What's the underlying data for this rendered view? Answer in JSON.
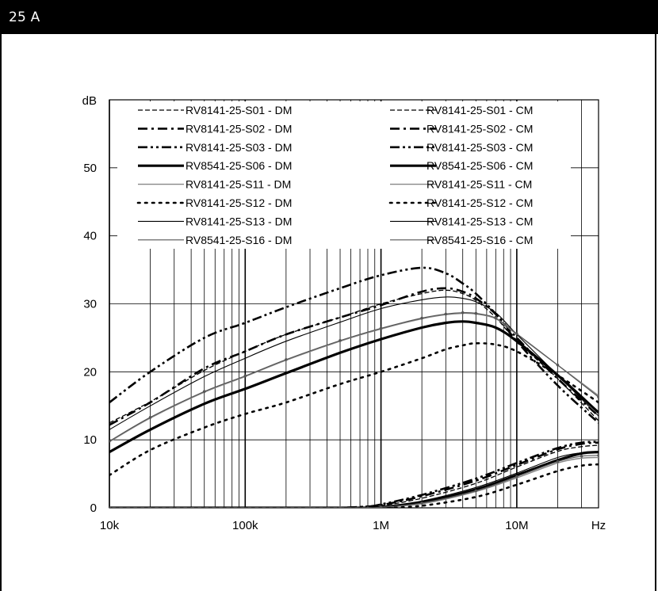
{
  "header": {
    "title": "25 A"
  },
  "chart_data": {
    "type": "line",
    "title": "",
    "xlabel": "Hz",
    "ylabel": "dB",
    "x_scale": "log",
    "xlim": [
      10000,
      40000000
    ],
    "ylim": [
      0,
      60
    ],
    "x_ticks": [
      10000,
      100000,
      1000000,
      10000000
    ],
    "x_tick_labels": [
      "10k",
      "100k",
      "1M",
      "10M"
    ],
    "y_ticks": [
      0,
      10,
      20,
      30,
      40,
      50
    ],
    "y_tick_labels": [
      "0",
      "10",
      "20",
      "30",
      "40",
      "50"
    ],
    "grid": true,
    "legend_placement": "top",
    "series": [
      {
        "name": "RV8141-25-S01 - DM",
        "color": "#000000",
        "style": "dash-fine",
        "x": [
          10000,
          20000,
          50000,
          100000,
          200000,
          500000,
          1000000,
          2000000,
          3000000,
          4000000,
          5000000,
          7000000,
          10000000,
          20000000,
          40000000
        ],
        "y": [
          12.5,
          15.6,
          20.2,
          23,
          25.5,
          28,
          30,
          31.5,
          32,
          31.5,
          30.5,
          28,
          24.5,
          19,
          12.8
        ]
      },
      {
        "name": "RV8141-25-S02 - DM",
        "color": "#000000",
        "style": "dash-dot",
        "x": [
          10000,
          20000,
          50000,
          100000,
          200000,
          500000,
          1000000,
          2000000,
          3000000,
          4000000,
          5000000,
          7000000,
          10000000,
          20000000,
          40000000
        ],
        "y": [
          12.2,
          15.5,
          20.5,
          23,
          25.5,
          28,
          29.8,
          31.8,
          32.3,
          31.8,
          30.8,
          28.5,
          25,
          19,
          13.5
        ]
      },
      {
        "name": "RV8141-25-S03 - DM",
        "color": "#000000",
        "style": "dash-dot-dot",
        "x": [
          10000,
          20000,
          50000,
          100000,
          200000,
          500000,
          1000000,
          2000000,
          3000000,
          4000000,
          5000000,
          7000000,
          10000000,
          20000000,
          40000000
        ],
        "y": [
          15.5,
          20,
          25,
          27.2,
          29.5,
          32.3,
          34.2,
          35.3,
          34.5,
          33,
          31.5,
          28.5,
          24.5,
          18,
          12.5
        ]
      },
      {
        "name": "RV8541-25-S06 - DM",
        "color": "#000000",
        "style": "thick",
        "x": [
          10000,
          20000,
          50000,
          100000,
          200000,
          500000,
          1000000,
          2000000,
          3000000,
          4000000,
          5000000,
          7000000,
          10000000,
          20000000,
          40000000
        ],
        "y": [
          8.2,
          11.5,
          15.3,
          17.5,
          19.8,
          22.8,
          24.8,
          26.5,
          27.2,
          27.4,
          27.2,
          26.5,
          24.5,
          19.5,
          14
        ]
      },
      {
        "name": "RV8141-25-S11 - DM",
        "color": "#888888",
        "style": "solid-gray",
        "x": [
          10000,
          20000,
          50000,
          100000,
          200000,
          500000,
          1000000,
          2000000,
          3000000,
          4000000,
          5000000,
          7000000,
          10000000,
          20000000,
          40000000
        ],
        "y": [
          9.7,
          13.2,
          17,
          19.3,
          21.7,
          24.5,
          26.3,
          27.8,
          28.4,
          28.6,
          28.5,
          27.8,
          25.5,
          21,
          16.5
        ]
      },
      {
        "name": "RV8141-25-S12 - DM",
        "color": "#000000",
        "style": "dotted",
        "x": [
          10000,
          20000,
          50000,
          100000,
          200000,
          500000,
          1000000,
          2000000,
          3000000,
          4000000,
          5000000,
          7000000,
          10000000,
          20000000,
          40000000
        ],
        "y": [
          4.8,
          8.5,
          11.8,
          13.8,
          15.5,
          18.2,
          20,
          22,
          23.3,
          23.9,
          24.2,
          24,
          23,
          19.5,
          15.5
        ]
      },
      {
        "name": "RV8141-25-S13 - DM",
        "color": "#000000",
        "style": "thin",
        "x": [
          10000,
          20000,
          50000,
          100000,
          200000,
          500000,
          1000000,
          2000000,
          3000000,
          4000000,
          5000000,
          7000000,
          10000000,
          20000000,
          40000000
        ],
        "y": [
          11.5,
          15,
          19.3,
          22,
          24.5,
          27.3,
          29.3,
          30.6,
          31,
          30.8,
          30.3,
          28.7,
          25.5,
          19.5,
          13.5
        ]
      },
      {
        "name": "RV8541-25-S16 - DM",
        "color": "#555555",
        "style": "gray-dots",
        "x": [
          10000,
          20000,
          50000,
          100000,
          200000,
          500000,
          1000000,
          2000000,
          3000000,
          4000000,
          5000000,
          7000000,
          10000000,
          20000000,
          40000000
        ],
        "y": [
          9.8,
          13.3,
          17.1,
          19.4,
          21.8,
          24.6,
          26.4,
          27.9,
          28.5,
          28.7,
          28.6,
          27.9,
          25.6,
          21,
          16.3
        ]
      },
      {
        "name": "RV8141-25-S01 - CM",
        "color": "#000000",
        "style": "dash-fine",
        "x": [
          10000,
          300000,
          500000,
          800000,
          1000000,
          2000000,
          5000000,
          10000000,
          20000000,
          30000000,
          40000000
        ],
        "y": [
          0,
          0,
          0,
          0.1,
          0.3,
          1.4,
          3.6,
          6.0,
          8.3,
          9.0,
          9.2
        ]
      },
      {
        "name": "RV8141-25-S02 - CM",
        "color": "#000000",
        "style": "dash-dot",
        "x": [
          10000,
          300000,
          500000,
          800000,
          1000000,
          2000000,
          5000000,
          10000000,
          20000000,
          30000000,
          40000000
        ],
        "y": [
          0,
          0,
          0,
          0.2,
          0.4,
          1.7,
          4.0,
          6.3,
          8.6,
          9.4,
          9.6
        ]
      },
      {
        "name": "RV8141-25-S03 - CM",
        "color": "#000000",
        "style": "dash-dot-dot",
        "x": [
          10000,
          300000,
          500000,
          800000,
          1000000,
          2000000,
          5000000,
          10000000,
          20000000,
          30000000,
          40000000
        ],
        "y": [
          0,
          0,
          0,
          0.2,
          0.5,
          1.9,
          4.3,
          6.6,
          8.8,
          9.6,
          9.7
        ]
      },
      {
        "name": "RV8541-25-S06 - CM",
        "color": "#000000",
        "style": "thick",
        "x": [
          10000,
          300000,
          500000,
          800000,
          1000000,
          2000000,
          5000000,
          10000000,
          20000000,
          30000000,
          40000000
        ],
        "y": [
          0,
          0,
          0,
          0,
          0.1,
          0.8,
          2.7,
          4.8,
          7.0,
          8.0,
          8.2
        ]
      },
      {
        "name": "RV8141-25-S11 - CM",
        "color": "#888888",
        "style": "solid-gray",
        "x": [
          10000,
          300000,
          500000,
          800000,
          1000000,
          2000000,
          5000000,
          10000000,
          20000000,
          30000000,
          40000000
        ],
        "y": [
          0,
          0,
          0,
          0,
          0.1,
          0.6,
          2.4,
          4.4,
          6.6,
          7.3,
          7.4
        ]
      },
      {
        "name": "RV8141-25-S12 - CM",
        "color": "#000000",
        "style": "dotted",
        "x": [
          10000,
          300000,
          500000,
          800000,
          1000000,
          2000000,
          5000000,
          10000000,
          20000000,
          30000000,
          40000000
        ],
        "y": [
          0,
          0,
          0,
          0,
          0,
          0.3,
          1.6,
          3.4,
          5.4,
          6.2,
          6.4
        ]
      },
      {
        "name": "RV8141-25-S13 - CM",
        "color": "#000000",
        "style": "thin",
        "x": [
          10000,
          300000,
          500000,
          800000,
          1000000,
          2000000,
          5000000,
          10000000,
          20000000,
          30000000,
          40000000
        ],
        "y": [
          0,
          0,
          0,
          0,
          0.2,
          1.0,
          3.0,
          5.1,
          7.4,
          8.1,
          8.3
        ]
      },
      {
        "name": "RV8541-25-S16 - CM",
        "color": "#555555",
        "style": "gray-dots",
        "x": [
          10000,
          300000,
          500000,
          800000,
          1000000,
          2000000,
          5000000,
          10000000,
          20000000,
          30000000,
          40000000
        ],
        "y": [
          0,
          0,
          0,
          0,
          0.1,
          0.7,
          2.5,
          4.6,
          6.8,
          7.6,
          7.7
        ]
      }
    ],
    "legend": {
      "left": [
        "RV8141-25-S01 - DM",
        "RV8141-25-S02 - DM",
        "RV8141-25-S03 - DM",
        "RV8541-25-S06 - DM",
        "RV8141-25-S11 - DM",
        "RV8141-25-S12 - DM",
        "RV8141-25-S13 - DM",
        "RV8541-25-S16 - DM"
      ],
      "right": [
        "RV8141-25-S01 - CM",
        "RV8141-25-S02 - CM",
        "RV8141-25-S03 - CM",
        "RV8541-25-S06 - CM",
        "RV8141-25-S11 - CM",
        "RV8141-25-S12 - CM",
        "RV8141-25-S13 - CM",
        "RV8541-25-S16 - CM"
      ]
    }
  }
}
